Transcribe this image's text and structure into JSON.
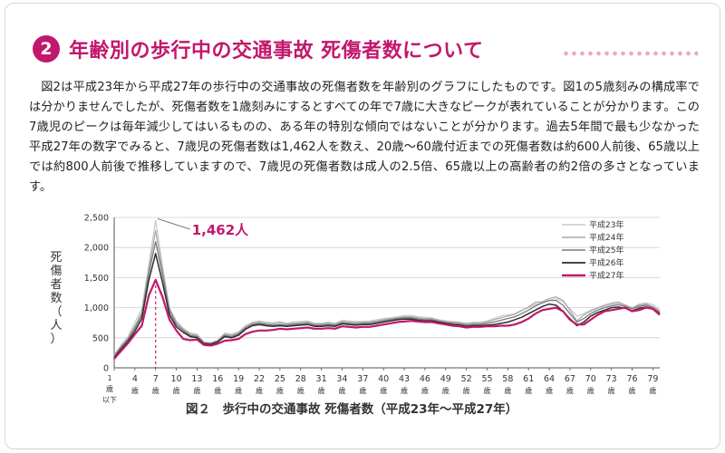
{
  "section": {
    "number": "2",
    "title": "年齢別の歩行中の交通事故 死傷者数について"
  },
  "body_text": "図2は平成23年から平成27年の歩行中の交通事故の死傷者数を年齢別のグラフにしたものです。図1の5歳刻みの構成率では分かりませんでしたが、死傷者数を1歳刻みにするとすべての年で7歳に大きなピークが表れていることが分かります。この7歳児のピークは毎年減少してはいるものの、ある年の特別な傾向ではないことが分かります。過去5年間で最も少なかった平成27年の数字でみると、7歳児の死傷者数は1,462人を数え、20歳～60歳付近までの死傷者数は約600人前後、65歳以上では約800人前後で推移していますので、7歳児の死傷者数は成人の2.5倍、65歳以上の高齢者の約2倍の多さとなっています。",
  "caption": "図２　歩行中の交通事故 死傷者数（平成23年～平成27年）",
  "colors": {
    "accent": "#c2176c",
    "h23": "#c8c8c8",
    "h24": "#a8a8a8",
    "h25": "#7a7a7a",
    "h26": "#2e2e2e",
    "h27": "#c2176c"
  },
  "chart_data": {
    "type": "line",
    "title": "",
    "ylabel": "死傷者数（人）",
    "xlabel": "",
    "ylim": [
      0,
      2500
    ],
    "yticks": [
      0,
      500,
      1000,
      1500,
      2000,
      2500
    ],
    "ytick_labels": [
      "0",
      "500",
      "1,000",
      "1,500",
      "2,000",
      "2,500"
    ],
    "xtick_ages": [
      1,
      4,
      7,
      10,
      13,
      16,
      19,
      22,
      25,
      28,
      31,
      34,
      37,
      40,
      43,
      46,
      49,
      52,
      55,
      58,
      61,
      64,
      67,
      70,
      73,
      76,
      79
    ],
    "xtick_first_label": "1歳以下",
    "xtick_suffix": "歳",
    "grid": true,
    "legend_position": "top-right",
    "annotation": {
      "text": "1,462人",
      "age": 7
    },
    "x": [
      1,
      2,
      3,
      4,
      5,
      6,
      7,
      8,
      9,
      10,
      11,
      12,
      13,
      14,
      15,
      16,
      17,
      18,
      19,
      20,
      21,
      22,
      23,
      24,
      25,
      26,
      27,
      28,
      29,
      30,
      31,
      32,
      33,
      34,
      35,
      36,
      37,
      38,
      39,
      40,
      41,
      42,
      43,
      44,
      45,
      46,
      47,
      48,
      49,
      50,
      51,
      52,
      53,
      54,
      55,
      56,
      57,
      58,
      59,
      60,
      61,
      62,
      63,
      64,
      65,
      66,
      67,
      68,
      69,
      70,
      71,
      72,
      73,
      74,
      75,
      76,
      77,
      78,
      79,
      80
    ],
    "series": [
      {
        "name": "平成23年",
        "values": [
          220,
          380,
          520,
          760,
          980,
          1700,
          2450,
          1700,
          1000,
          780,
          660,
          580,
          560,
          430,
          420,
          460,
          580,
          560,
          600,
          700,
          760,
          780,
          760,
          750,
          770,
          740,
          760,
          770,
          780,
          740,
          740,
          760,
          740,
          790,
          780,
          770,
          770,
          780,
          800,
          820,
          830,
          850,
          870,
          870,
          850,
          840,
          830,
          800,
          780,
          770,
          760,
          740,
          760,
          760,
          780,
          820,
          860,
          880,
          900,
          960,
          1000,
          1060,
          1080,
          1120,
          1150,
          1100,
          980,
          860,
          900,
          960,
          1000,
          1050,
          1080,
          1100,
          1050,
          1000,
          1060,
          1080,
          1050,
          960
        ]
      },
      {
        "name": "平成24年",
        "values": [
          200,
          360,
          490,
          700,
          920,
          1620,
          2280,
          1620,
          980,
          750,
          640,
          560,
          540,
          420,
          410,
          450,
          560,
          540,
          580,
          680,
          740,
          760,
          740,
          730,
          750,
          730,
          740,
          750,
          760,
          730,
          730,
          740,
          730,
          770,
          760,
          750,
          760,
          760,
          780,
          800,
          820,
          830,
          850,
          850,
          830,
          820,
          820,
          790,
          770,
          760,
          750,
          730,
          740,
          740,
          760,
          800,
          830,
          860,
          890,
          950,
          1010,
          1090,
          1100,
          1150,
          1180,
          1120,
          960,
          780,
          880,
          940,
          990,
          1030,
          1060,
          1080,
          1040,
          990,
          1040,
          1060,
          1020,
          940
        ]
      },
      {
        "name": "平成25年",
        "values": [
          190,
          340,
          470,
          660,
          880,
          1560,
          2100,
          1550,
          940,
          720,
          620,
          540,
          520,
          410,
          400,
          440,
          540,
          520,
          560,
          660,
          720,
          740,
          720,
          710,
          720,
          710,
          720,
          730,
          740,
          710,
          710,
          720,
          710,
          750,
          740,
          730,
          740,
          740,
          760,
          780,
          800,
          820,
          830,
          830,
          810,
          800,
          800,
          770,
          750,
          740,
          730,
          710,
          720,
          720,
          740,
          760,
          790,
          820,
          850,
          900,
          960,
          1030,
          1080,
          1120,
          1120,
          1040,
          900,
          760,
          820,
          900,
          960,
          1000,
          1030,
          1050,
          1020,
          980,
          1020,
          1040,
          1000,
          920
        ]
      },
      {
        "name": "平成26年",
        "values": [
          170,
          310,
          440,
          610,
          820,
          1450,
          1900,
          1420,
          880,
          680,
          590,
          520,
          500,
          400,
          390,
          430,
          520,
          500,
          540,
          640,
          700,
          720,
          700,
          690,
          700,
          690,
          700,
          710,
          720,
          690,
          690,
          700,
          690,
          730,
          720,
          710,
          720,
          720,
          740,
          760,
          780,
          800,
          810,
          810,
          790,
          780,
          780,
          760,
          740,
          720,
          710,
          690,
          700,
          700,
          710,
          720,
          740,
          760,
          800,
          840,
          900,
          960,
          1020,
          1060,
          1040,
          940,
          820,
          700,
          760,
          860,
          920,
          960,
          1000,
          1010,
          990,
          950,
          990,
          1010,
          980,
          900
        ]
      },
      {
        "name": "平成27年",
        "values": [
          150,
          280,
          410,
          560,
          700,
          1200,
          1462,
          1180,
          800,
          620,
          480,
          460,
          470,
          380,
          370,
          400,
          450,
          460,
          480,
          560,
          600,
          620,
          620,
          630,
          650,
          640,
          650,
          660,
          670,
          650,
          650,
          660,
          650,
          690,
          680,
          670,
          680,
          680,
          700,
          720,
          740,
          760,
          770,
          780,
          770,
          760,
          760,
          740,
          720,
          700,
          690,
          670,
          680,
          680,
          690,
          690,
          700,
          700,
          720,
          760,
          820,
          900,
          960,
          980,
          1000,
          940,
          800,
          720,
          720,
          800,
          880,
          940,
          960,
          980,
          1000,
          940,
          960,
          1000,
          980,
          880
        ]
      }
    ]
  }
}
